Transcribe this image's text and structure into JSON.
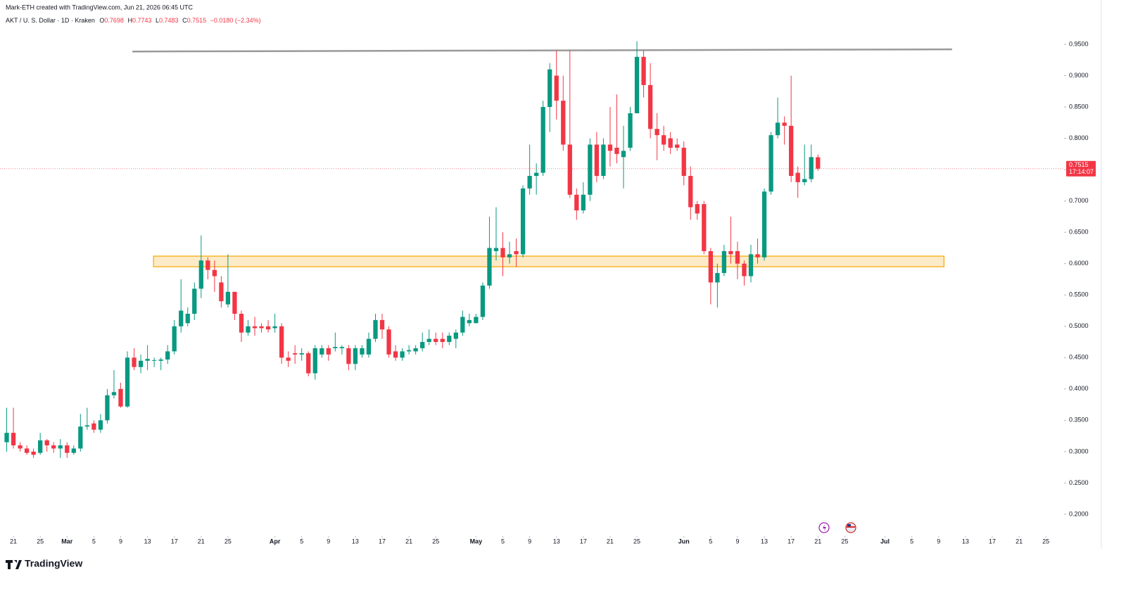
{
  "header": {
    "credit": "Mark-ETH created with TradingView.com, Jun 21, 2026 06:45 UTC",
    "symbol": "AKT / U. S. Dollar · 1D · Kraken",
    "open_label": "O",
    "open": "0.7698",
    "high_label": "H",
    "high": "0.7743",
    "low_label": "L",
    "low": "0.7483",
    "close_label": "C",
    "close": "0.7515",
    "change": "−0.0180 (−2.34%)"
  },
  "brand": "TradingView",
  "chart_data": {
    "type": "candlestick",
    "up_color": "#089981",
    "down_color": "#f23645",
    "open": [
      0.315,
      0.33,
      0.31,
      0.305,
      0.3,
      0.298,
      0.318,
      0.31,
      0.305,
      0.31,
      0.298,
      0.305,
      0.34,
      0.345,
      0.335,
      0.35,
      0.39,
      0.4,
      0.372,
      0.45,
      0.435,
      0.445,
      0.445,
      0.445,
      0.447,
      0.46,
      0.5,
      0.505,
      0.52,
      0.56,
      0.605,
      0.59,
      0.57,
      0.535,
      0.555,
      0.52,
      0.49,
      0.5,
      0.5,
      0.5,
      0.497,
      0.5,
      0.45,
      0.457,
      0.455,
      0.457,
      0.425,
      0.455,
      0.465,
      0.465,
      0.465,
      0.465,
      0.44,
      0.455,
      0.455,
      0.48,
      0.51,
      0.495,
      0.46,
      0.45,
      0.46,
      0.46,
      0.465,
      0.475,
      0.48,
      0.48,
      0.475,
      0.48,
      0.49,
      0.505,
      0.505,
      0.515,
      0.565,
      0.62,
      0.625,
      0.61,
      0.62,
      0.615,
      0.72,
      0.74,
      0.745,
      0.85,
      0.9,
      0.86,
      0.79,
      0.71,
      0.685,
      0.71,
      0.79,
      0.74,
      0.79,
      0.785,
      0.77,
      0.785,
      0.84,
      0.93,
      0.885,
      0.815,
      0.805,
      0.8,
      0.79,
      0.785,
      0.74,
      0.695,
      0.695,
      0.62,
      0.57,
      0.585,
      0.62,
      0.62,
      0.6,
      0.58,
      0.615,
      0.61,
      0.715,
      0.805,
      0.825,
      0.82,
      0.745,
      0.73,
      0.735,
      0.7698
    ],
    "high": [
      0.37,
      0.37,
      0.315,
      0.31,
      0.305,
      0.33,
      0.32,
      0.315,
      0.32,
      0.315,
      0.31,
      0.36,
      0.37,
      0.35,
      0.36,
      0.4,
      0.43,
      0.41,
      0.46,
      0.465,
      0.455,
      0.47,
      0.45,
      0.45,
      0.47,
      0.51,
      0.575,
      0.53,
      0.57,
      0.645,
      0.61,
      0.605,
      0.58,
      0.615,
      0.555,
      0.525,
      0.51,
      0.515,
      0.505,
      0.51,
      0.52,
      0.505,
      0.46,
      0.47,
      0.465,
      0.46,
      0.47,
      0.47,
      0.47,
      0.49,
      0.47,
      0.47,
      0.47,
      0.47,
      0.49,
      0.52,
      0.52,
      0.5,
      0.47,
      0.465,
      0.47,
      0.47,
      0.49,
      0.495,
      0.49,
      0.49,
      0.49,
      0.495,
      0.525,
      0.52,
      0.52,
      0.57,
      0.675,
      0.69,
      0.65,
      0.635,
      0.64,
      0.725,
      0.79,
      0.76,
      0.86,
      0.92,
      0.94,
      0.9,
      0.94,
      0.72,
      0.73,
      0.8,
      0.81,
      0.8,
      0.85,
      0.87,
      0.82,
      0.85,
      0.955,
      0.94,
      0.92,
      0.84,
      0.82,
      0.81,
      0.8,
      0.795,
      0.755,
      0.7,
      0.7,
      0.625,
      0.6,
      0.63,
      0.675,
      0.635,
      0.605,
      0.63,
      0.64,
      0.72,
      0.81,
      0.865,
      0.835,
      0.9,
      0.755,
      0.79,
      0.79,
      0.7743
    ],
    "low": [
      0.3,
      0.305,
      0.3,
      0.295,
      0.29,
      0.295,
      0.3,
      0.298,
      0.29,
      0.29,
      0.295,
      0.3,
      0.335,
      0.33,
      0.33,
      0.345,
      0.385,
      0.37,
      0.37,
      0.43,
      0.425,
      0.43,
      0.435,
      0.43,
      0.44,
      0.455,
      0.49,
      0.5,
      0.51,
      0.545,
      0.575,
      0.555,
      0.53,
      0.53,
      0.51,
      0.475,
      0.485,
      0.485,
      0.49,
      0.49,
      0.49,
      0.44,
      0.435,
      0.44,
      0.445,
      0.42,
      0.415,
      0.45,
      0.445,
      0.46,
      0.455,
      0.43,
      0.43,
      0.45,
      0.45,
      0.475,
      0.48,
      0.45,
      0.445,
      0.445,
      0.455,
      0.455,
      0.46,
      0.47,
      0.47,
      0.465,
      0.47,
      0.465,
      0.485,
      0.5,
      0.505,
      0.51,
      0.56,
      0.605,
      0.58,
      0.6,
      0.595,
      0.61,
      0.71,
      0.71,
      0.74,
      0.81,
      0.83,
      0.78,
      0.705,
      0.67,
      0.68,
      0.7,
      0.73,
      0.735,
      0.755,
      0.76,
      0.72,
      0.78,
      0.84,
      0.865,
      0.8,
      0.765,
      0.78,
      0.775,
      0.78,
      0.725,
      0.67,
      0.67,
      0.615,
      0.535,
      0.53,
      0.58,
      0.6,
      0.575,
      0.565,
      0.57,
      0.6,
      0.605,
      0.71,
      0.8,
      0.79,
      0.73,
      0.705,
      0.725,
      0.73,
      0.7483
    ],
    "close": [
      0.33,
      0.31,
      0.305,
      0.298,
      0.295,
      0.318,
      0.31,
      0.305,
      0.31,
      0.298,
      0.305,
      0.34,
      0.342,
      0.335,
      0.35,
      0.39,
      0.395,
      0.372,
      0.45,
      0.435,
      0.445,
      0.448,
      0.446,
      0.447,
      0.46,
      0.5,
      0.525,
      0.52,
      0.56,
      0.605,
      0.59,
      0.58,
      0.54,
      0.555,
      0.52,
      0.49,
      0.5,
      0.497,
      0.497,
      0.495,
      0.5,
      0.45,
      0.445,
      0.455,
      0.457,
      0.425,
      0.465,
      0.465,
      0.455,
      0.467,
      0.467,
      0.44,
      0.465,
      0.465,
      0.48,
      0.51,
      0.495,
      0.455,
      0.45,
      0.46,
      0.462,
      0.465,
      0.475,
      0.48,
      0.475,
      0.475,
      0.485,
      0.49,
      0.515,
      0.51,
      0.515,
      0.565,
      0.625,
      0.625,
      0.61,
      0.615,
      0.615,
      0.72,
      0.74,
      0.745,
      0.85,
      0.91,
      0.86,
      0.79,
      0.71,
      0.685,
      0.71,
      0.79,
      0.74,
      0.79,
      0.78,
      0.775,
      0.78,
      0.84,
      0.93,
      0.885,
      0.815,
      0.805,
      0.79,
      0.785,
      0.785,
      0.74,
      0.69,
      0.68,
      0.62,
      0.57,
      0.585,
      0.62,
      0.615,
      0.6,
      0.58,
      0.615,
      0.61,
      0.715,
      0.805,
      0.825,
      0.82,
      0.74,
      0.73,
      0.735,
      0.77,
      0.7515
    ],
    "xlim": [
      -1,
      157.5
    ],
    "xticks": [
      {
        "value": 1,
        "label": "21"
      },
      {
        "value": 5,
        "label": "25"
      },
      {
        "value": 9,
        "label": "Mar"
      },
      {
        "value": 13,
        "label": "5"
      },
      {
        "value": 17,
        "label": "9"
      },
      {
        "value": 21,
        "label": "13"
      },
      {
        "value": 25,
        "label": "17"
      },
      {
        "value": 29,
        "label": "21"
      },
      {
        "value": 33,
        "label": "25"
      },
      {
        "value": 40,
        "label": "Apr"
      },
      {
        "value": 44,
        "label": "5"
      },
      {
        "value": 48,
        "label": "9"
      },
      {
        "value": 52,
        "label": "13"
      },
      {
        "value": 56,
        "label": "17"
      },
      {
        "value": 60,
        "label": "21"
      },
      {
        "value": 64,
        "label": "25"
      },
      {
        "value": 70,
        "label": "May"
      },
      {
        "value": 74,
        "label": "5"
      },
      {
        "value": 78,
        "label": "9"
      },
      {
        "value": 82,
        "label": "13"
      },
      {
        "value": 86,
        "label": "17"
      },
      {
        "value": 90,
        "label": "21"
      },
      {
        "value": 94,
        "label": "25"
      },
      {
        "value": 101,
        "label": "Jun"
      },
      {
        "value": 105,
        "label": "5"
      },
      {
        "value": 109,
        "label": "9"
      },
      {
        "value": 113,
        "label": "13"
      },
      {
        "value": 117,
        "label": "17"
      },
      {
        "value": 121,
        "label": "21"
      },
      {
        "value": 125,
        "label": "25"
      },
      {
        "value": 131,
        "label": "Jul"
      },
      {
        "value": 135,
        "label": "5"
      },
      {
        "value": 139,
        "label": "9"
      },
      {
        "value": 143,
        "label": "13"
      },
      {
        "value": 147,
        "label": "17"
      },
      {
        "value": 151,
        "label": "21"
      },
      {
        "value": 155,
        "label": "25"
      }
    ],
    "ylim": [
      0.1674,
      0.9702
    ],
    "yticks": [
      {
        "value": 0.2,
        "label": "0.2000"
      },
      {
        "value": 0.25,
        "label": "0.2500"
      },
      {
        "value": 0.3,
        "label": "0.3000"
      },
      {
        "value": 0.35,
        "label": "0.3500"
      },
      {
        "value": 0.4,
        "label": "0.4000"
      },
      {
        "value": 0.45,
        "label": "0.4500"
      },
      {
        "value": 0.5,
        "label": "0.5000"
      },
      {
        "value": 0.55,
        "label": "0.5500"
      },
      {
        "value": 0.6,
        "label": "0.6000"
      },
      {
        "value": 0.65,
        "label": "0.6500"
      },
      {
        "value": 0.7,
        "label": "0.7000"
      },
      {
        "value": 0.75,
        "label": "0.7500"
      },
      {
        "value": 0.8,
        "label": "0.8000"
      },
      {
        "value": 0.85,
        "label": "0.8500"
      },
      {
        "value": 0.9,
        "label": "0.9000"
      },
      {
        "value": 0.95,
        "label": "0.9500"
      }
    ],
    "grid": false,
    "last_price": {
      "value": 0.7515,
      "label": "0.7515",
      "countdown": "17:14:07",
      "color": "#f23645"
    },
    "trend_line": {
      "x": [
        18.75,
        141
      ],
      "y": [
        0.9385,
        0.942
      ],
      "color": "#9a9a9a"
    },
    "zone": {
      "x": [
        21.9,
        139.8
      ],
      "y": [
        0.595,
        0.612
      ],
      "color": "#f7a600"
    }
  }
}
